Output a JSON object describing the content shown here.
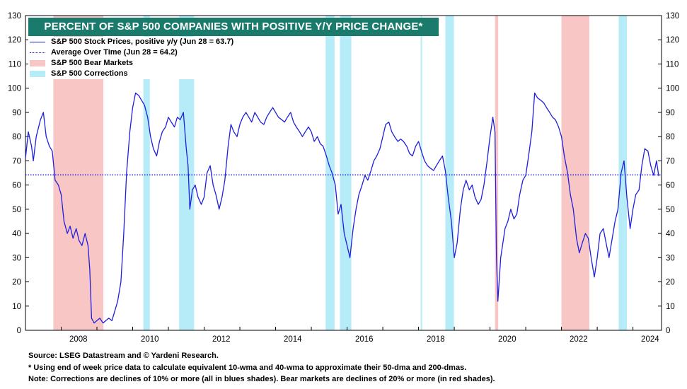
{
  "title": "PERCENT OF S&P 500 COMPANIES WITH POSITIVE Y/Y PRICE CHANGE*",
  "legend": [
    {
      "label": "S&P 500 Stock Prices, positive y/y (Jun 28 = 63.7)",
      "kind": "line",
      "color": "#1f1fdc"
    },
    {
      "label": "Average Over Time (Jun 28 = 64.2)",
      "kind": "dotted",
      "color": "#1f1fdc"
    },
    {
      "label": "S&P 500 Bear Markets",
      "kind": "fill",
      "color": "#f9c6c6"
    },
    {
      "label": "S&P 500 Corrections",
      "kind": "fill",
      "color": "#b6ecf8"
    }
  ],
  "notes": [
    "Source: LSEG Datastream and © Yardeni Research.",
    "* Using end of week price data to calculate equivalent 10-wma and 40-wma to approximate their 50-dma and 200-dmas.",
    "Note: Corrections are declines of 10% or more (all in blues shades). Bear markets are declines of 20% or more (in red shades)."
  ],
  "colors": {
    "series": "#1f1fdc",
    "bear": "#f9c6c6",
    "correction": "#b6ecf8",
    "title_bg": "#1a7a6c"
  },
  "chart_data": {
    "type": "line",
    "title": "PERCENT OF S&P 500 COMPANIES WITH POSITIVE Y/Y PRICE CHANGE*",
    "xlim": [
      2007.0,
      2024.8
    ],
    "ylim": [
      0,
      130
    ],
    "x_ticks": [
      2008,
      2010,
      2012,
      2014,
      2016,
      2018,
      2020,
      2022,
      2024
    ],
    "y_ticks": [
      0,
      10,
      20,
      30,
      40,
      50,
      60,
      70,
      80,
      90,
      100,
      110,
      120,
      130
    ],
    "y_axes": [
      "left",
      "right"
    ],
    "average": 64.2,
    "bear_markets": [
      [
        2007.78,
        2009.18
      ],
      [
        2020.14,
        2020.23
      ],
      [
        2022.0,
        2022.78
      ]
    ],
    "corrections": [
      [
        2010.3,
        2010.48
      ],
      [
        2011.3,
        2011.72
      ],
      [
        2015.4,
        2015.65
      ],
      [
        2015.8,
        2016.12
      ],
      [
        2018.06,
        2018.1
      ],
      [
        2018.75,
        2018.99
      ],
      [
        2023.6,
        2023.83
      ]
    ],
    "series": [
      {
        "name": "S&P 500 Stock Prices, positive y/y (Jun 28 = 63.7)",
        "points": [
          [
            2007.0,
            71
          ],
          [
            2007.08,
            82
          ],
          [
            2007.17,
            76
          ],
          [
            2007.22,
            70
          ],
          [
            2007.3,
            80
          ],
          [
            2007.42,
            87
          ],
          [
            2007.5,
            90
          ],
          [
            2007.58,
            80
          ],
          [
            2007.67,
            76
          ],
          [
            2007.75,
            74
          ],
          [
            2007.83,
            62
          ],
          [
            2007.92,
            60
          ],
          [
            2008.0,
            56
          ],
          [
            2008.08,
            45
          ],
          [
            2008.17,
            40
          ],
          [
            2008.25,
            43
          ],
          [
            2008.33,
            38
          ],
          [
            2008.42,
            42
          ],
          [
            2008.5,
            37
          ],
          [
            2008.58,
            35
          ],
          [
            2008.67,
            40
          ],
          [
            2008.75,
            35
          ],
          [
            2008.8,
            25
          ],
          [
            2008.85,
            5
          ],
          [
            2008.92,
            3
          ],
          [
            2009.0,
            4
          ],
          [
            2009.08,
            5
          ],
          [
            2009.17,
            3
          ],
          [
            2009.25,
            4
          ],
          [
            2009.33,
            5
          ],
          [
            2009.42,
            4
          ],
          [
            2009.5,
            8
          ],
          [
            2009.58,
            12
          ],
          [
            2009.67,
            20
          ],
          [
            2009.75,
            40
          ],
          [
            2009.83,
            65
          ],
          [
            2009.92,
            82
          ],
          [
            2010.0,
            92
          ],
          [
            2010.08,
            98
          ],
          [
            2010.17,
            97
          ],
          [
            2010.25,
            95
          ],
          [
            2010.33,
            93
          ],
          [
            2010.42,
            88
          ],
          [
            2010.5,
            80
          ],
          [
            2010.58,
            75
          ],
          [
            2010.67,
            72
          ],
          [
            2010.75,
            78
          ],
          [
            2010.83,
            82
          ],
          [
            2010.92,
            84
          ],
          [
            2011.0,
            88
          ],
          [
            2011.08,
            86
          ],
          [
            2011.17,
            84
          ],
          [
            2011.25,
            88
          ],
          [
            2011.33,
            87
          ],
          [
            2011.42,
            90
          ],
          [
            2011.5,
            75
          ],
          [
            2011.55,
            68
          ],
          [
            2011.6,
            50
          ],
          [
            2011.67,
            58
          ],
          [
            2011.75,
            60
          ],
          [
            2011.83,
            55
          ],
          [
            2011.92,
            52
          ],
          [
            2012.0,
            55
          ],
          [
            2012.08,
            65
          ],
          [
            2012.17,
            68
          ],
          [
            2012.25,
            60
          ],
          [
            2012.33,
            56
          ],
          [
            2012.42,
            50
          ],
          [
            2012.5,
            55
          ],
          [
            2012.58,
            62
          ],
          [
            2012.67,
            76
          ],
          [
            2012.75,
            85
          ],
          [
            2012.83,
            82
          ],
          [
            2012.92,
            80
          ],
          [
            2013.0,
            85
          ],
          [
            2013.08,
            88
          ],
          [
            2013.17,
            90
          ],
          [
            2013.25,
            88
          ],
          [
            2013.33,
            86
          ],
          [
            2013.42,
            90
          ],
          [
            2013.5,
            88
          ],
          [
            2013.58,
            86
          ],
          [
            2013.67,
            85
          ],
          [
            2013.75,
            88
          ],
          [
            2013.83,
            90
          ],
          [
            2013.92,
            92
          ],
          [
            2014.0,
            90
          ],
          [
            2014.08,
            88
          ],
          [
            2014.17,
            87
          ],
          [
            2014.25,
            86
          ],
          [
            2014.33,
            88
          ],
          [
            2014.42,
            90
          ],
          [
            2014.5,
            86
          ],
          [
            2014.58,
            84
          ],
          [
            2014.67,
            82
          ],
          [
            2014.75,
            80
          ],
          [
            2014.83,
            82
          ],
          [
            2014.92,
            84
          ],
          [
            2015.0,
            82
          ],
          [
            2015.08,
            78
          ],
          [
            2015.17,
            80
          ],
          [
            2015.25,
            77
          ],
          [
            2015.33,
            76
          ],
          [
            2015.42,
            72
          ],
          [
            2015.5,
            68
          ],
          [
            2015.58,
            65
          ],
          [
            2015.67,
            60
          ],
          [
            2015.75,
            48
          ],
          [
            2015.83,
            52
          ],
          [
            2015.92,
            40
          ],
          [
            2016.0,
            35
          ],
          [
            2016.08,
            30
          ],
          [
            2016.17,
            42
          ],
          [
            2016.25,
            50
          ],
          [
            2016.33,
            56
          ],
          [
            2016.42,
            60
          ],
          [
            2016.5,
            64
          ],
          [
            2016.58,
            62
          ],
          [
            2016.67,
            66
          ],
          [
            2016.75,
            70
          ],
          [
            2016.83,
            72
          ],
          [
            2016.92,
            75
          ],
          [
            2017.0,
            80
          ],
          [
            2017.08,
            85
          ],
          [
            2017.17,
            86
          ],
          [
            2017.25,
            82
          ],
          [
            2017.33,
            80
          ],
          [
            2017.42,
            78
          ],
          [
            2017.5,
            79
          ],
          [
            2017.58,
            78
          ],
          [
            2017.67,
            76
          ],
          [
            2017.75,
            73
          ],
          [
            2017.83,
            72
          ],
          [
            2017.92,
            76
          ],
          [
            2018.0,
            78
          ],
          [
            2018.08,
            74
          ],
          [
            2018.17,
            70
          ],
          [
            2018.25,
            68
          ],
          [
            2018.33,
            67
          ],
          [
            2018.42,
            66
          ],
          [
            2018.5,
            68
          ],
          [
            2018.58,
            70
          ],
          [
            2018.67,
            72
          ],
          [
            2018.75,
            66
          ],
          [
            2018.83,
            55
          ],
          [
            2018.92,
            45
          ],
          [
            2019.0,
            30
          ],
          [
            2019.08,
            36
          ],
          [
            2019.17,
            50
          ],
          [
            2019.25,
            58
          ],
          [
            2019.33,
            62
          ],
          [
            2019.42,
            58
          ],
          [
            2019.5,
            60
          ],
          [
            2019.58,
            55
          ],
          [
            2019.67,
            52
          ],
          [
            2019.75,
            54
          ],
          [
            2019.83,
            60
          ],
          [
            2019.92,
            70
          ],
          [
            2020.0,
            80
          ],
          [
            2020.08,
            88
          ],
          [
            2020.14,
            82
          ],
          [
            2020.18,
            30
          ],
          [
            2020.22,
            12
          ],
          [
            2020.3,
            30
          ],
          [
            2020.42,
            42
          ],
          [
            2020.5,
            45
          ],
          [
            2020.58,
            50
          ],
          [
            2020.67,
            46
          ],
          [
            2020.75,
            48
          ],
          [
            2020.83,
            56
          ],
          [
            2020.92,
            62
          ],
          [
            2021.0,
            64
          ],
          [
            2021.08,
            72
          ],
          [
            2021.17,
            82
          ],
          [
            2021.25,
            98
          ],
          [
            2021.33,
            96
          ],
          [
            2021.42,
            95
          ],
          [
            2021.5,
            94
          ],
          [
            2021.58,
            92
          ],
          [
            2021.67,
            90
          ],
          [
            2021.75,
            88
          ],
          [
            2021.83,
            87
          ],
          [
            2021.92,
            84
          ],
          [
            2022.0,
            80
          ],
          [
            2022.08,
            72
          ],
          [
            2022.17,
            65
          ],
          [
            2022.25,
            56
          ],
          [
            2022.33,
            50
          ],
          [
            2022.42,
            38
          ],
          [
            2022.5,
            32
          ],
          [
            2022.58,
            36
          ],
          [
            2022.67,
            40
          ],
          [
            2022.75,
            38
          ],
          [
            2022.83,
            30
          ],
          [
            2022.92,
            22
          ],
          [
            2023.0,
            30
          ],
          [
            2023.08,
            40
          ],
          [
            2023.17,
            42
          ],
          [
            2023.25,
            36
          ],
          [
            2023.33,
            30
          ],
          [
            2023.42,
            38
          ],
          [
            2023.5,
            45
          ],
          [
            2023.58,
            50
          ],
          [
            2023.67,
            65
          ],
          [
            2023.75,
            70
          ],
          [
            2023.83,
            55
          ],
          [
            2023.92,
            42
          ],
          [
            2024.0,
            50
          ],
          [
            2024.08,
            56
          ],
          [
            2024.17,
            58
          ],
          [
            2024.25,
            68
          ],
          [
            2024.33,
            75
          ],
          [
            2024.42,
            74
          ],
          [
            2024.5,
            68
          ],
          [
            2024.58,
            64
          ],
          [
            2024.66,
            70
          ],
          [
            2024.72,
            63.7
          ]
        ]
      }
    ]
  }
}
